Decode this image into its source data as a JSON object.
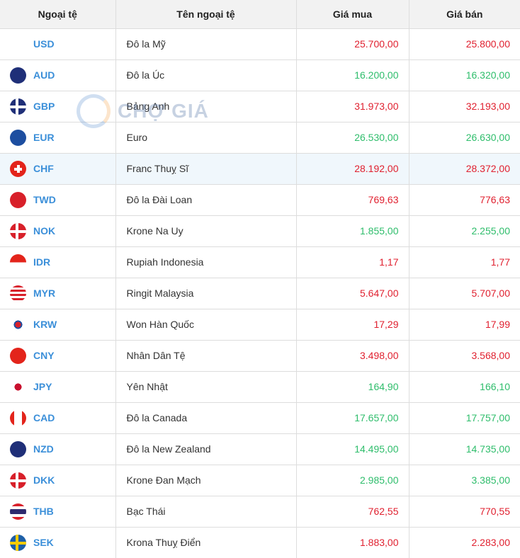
{
  "headers": [
    "Ngoại tệ",
    "Tên ngoại tệ",
    "Giá mua",
    "Giá bán"
  ],
  "watermark": "CHỢ GIÁ",
  "colors": {
    "up": "#e0202f",
    "down": "#2ebd6b",
    "code": "#3b8fd9"
  },
  "rows": [
    {
      "code": "USD",
      "name": "Đô la Mỹ",
      "buy": "25.700,00",
      "sell": "25.800,00",
      "trend": "red",
      "flag": "linear-gradient(#fff 0 0) , repeating-linear-gradient(#c8102e 0 3px,#fff 3px 6px)"
    },
    {
      "code": "AUD",
      "name": "Đô la Úc",
      "buy": "16.200,00",
      "sell": "16.320,00",
      "trend": "green",
      "flag": "#1f2f78"
    },
    {
      "code": "GBP",
      "name": "Bảng Anh",
      "buy": "31.973,00",
      "sell": "32.193,00",
      "trend": "red",
      "flag": "#1f2f78"
    },
    {
      "code": "EUR",
      "name": "Euro",
      "buy": "26.530,00",
      "sell": "26.630,00",
      "trend": "green",
      "flag": "#1d4ea0"
    },
    {
      "code": "CHF",
      "name": "Franc Thuỵ Sĩ",
      "buy": "28.192,00",
      "sell": "28.372,00",
      "trend": "red",
      "flag": "#e3241b"
    },
    {
      "code": "TWD",
      "name": "Đô la Đài Loan",
      "buy": "769,63",
      "sell": "776,63",
      "trend": "red",
      "flag": "#d8202a"
    },
    {
      "code": "NOK",
      "name": "Krone Na Uy",
      "buy": "1.855,00",
      "sell": "2.255,00",
      "trend": "green",
      "flag": "#d8202a"
    },
    {
      "code": "IDR",
      "name": "Rupiah Indonesia",
      "buy": "1,17",
      "sell": "1,77",
      "trend": "red",
      "flag": "linear-gradient(#e3241b 50%,#fff 50%)"
    },
    {
      "code": "MYR",
      "name": "Ringit Malaysia",
      "buy": "5.647,00",
      "sell": "5.707,00",
      "trend": "red",
      "flag": "repeating-linear-gradient(#d8202a 0 3px,#fff 3px 6px)"
    },
    {
      "code": "KRW",
      "name": "Won Hàn Quốc",
      "buy": "17,29",
      "sell": "17,99",
      "trend": "red",
      "flag": "radial-gradient(circle,#d8202a 0 4px,#1d4ea0 4px 6px,#fff 6px)"
    },
    {
      "code": "CNY",
      "name": "Nhân Dân Tệ",
      "buy": "3.498,00",
      "sell": "3.568,00",
      "trend": "red",
      "flag": "#e3241b"
    },
    {
      "code": "JPY",
      "name": "Yên Nhật",
      "buy": "164,90",
      "sell": "166,10",
      "trend": "green",
      "flag": "radial-gradient(circle,#c8102e 0 5px,#fff 5px)"
    },
    {
      "code": "CAD",
      "name": "Đô la Canada",
      "buy": "17.657,00",
      "sell": "17.757,00",
      "trend": "green",
      "flag": "linear-gradient(90deg,#e3241b 25%,#fff 25% 75%,#e3241b 75%)"
    },
    {
      "code": "NZD",
      "name": "Đô la New Zealand",
      "buy": "14.495,00",
      "sell": "14.735,00",
      "trend": "green",
      "flag": "#1f2f78"
    },
    {
      "code": "DKK",
      "name": "Krone Đan Mạch",
      "buy": "2.985,00",
      "sell": "3.385,00",
      "trend": "green",
      "flag": "#d8202a"
    },
    {
      "code": "THB",
      "name": "Bạc Thái",
      "buy": "762,55",
      "sell": "770,55",
      "trend": "red",
      "flag": "linear-gradient(#d8202a 18%,#fff 18% 34%,#2d2a6e 34% 66%,#fff 66% 82%,#d8202a 82%)"
    },
    {
      "code": "SEK",
      "name": "Krona Thuỵ Điển",
      "buy": "1.883,00",
      "sell": "2.283,00",
      "trend": "red",
      "flag": "#1d5fa8"
    }
  ]
}
